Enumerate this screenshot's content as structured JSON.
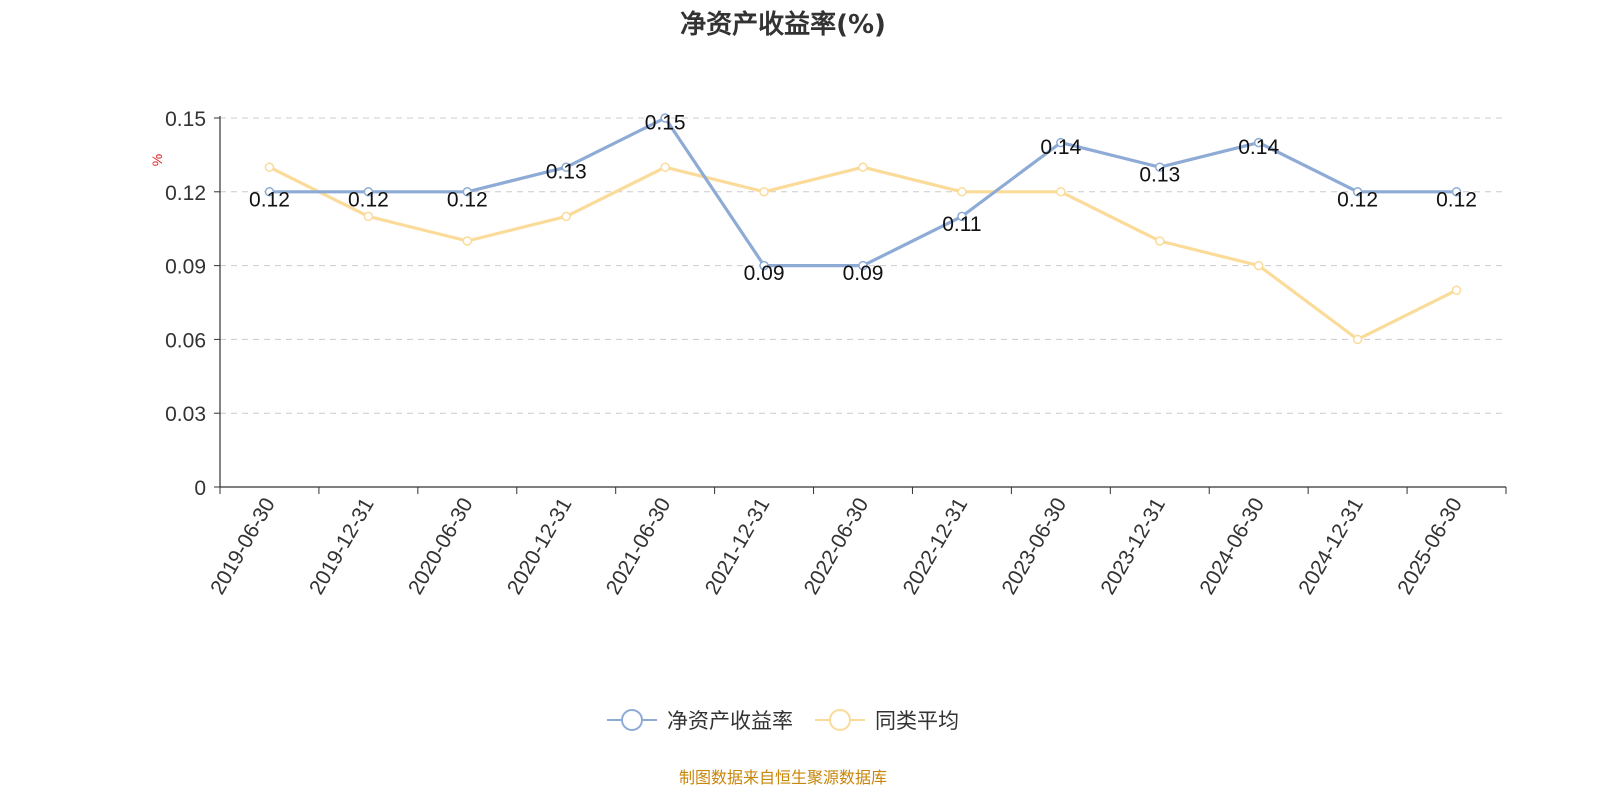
{
  "chart_data": {
    "type": "line",
    "title": "净资产收益率(%)",
    "ylabel": "%",
    "xlabel": "",
    "categories": [
      "2019-06-30",
      "2019-12-31",
      "2020-06-30",
      "2020-12-31",
      "2021-06-30",
      "2021-12-31",
      "2022-06-30",
      "2022-12-31",
      "2023-06-30",
      "2023-12-31",
      "2024-06-30",
      "2024-12-31",
      "2025-06-30"
    ],
    "yticks": [
      "0",
      "0.03",
      "0.06",
      "0.09",
      "0.12",
      "0.15"
    ],
    "ylim": [
      0,
      0.15
    ],
    "grid": true,
    "legend_position": "bottom",
    "series": [
      {
        "name": "净资产收益率",
        "color": "#8eabd6",
        "values": [
          0.12,
          0.12,
          0.12,
          0.13,
          0.15,
          0.09,
          0.09,
          0.11,
          0.14,
          0.13,
          0.14,
          0.12,
          0.12
        ],
        "labels": [
          "0.12",
          "0.12",
          "0.12",
          "0.13",
          "0.15",
          "0.09",
          "0.09",
          "0.11",
          "0.14",
          "0.13",
          "0.14",
          "0.12",
          "0.12"
        ]
      },
      {
        "name": "同类平均",
        "color": "#fbdb9a",
        "values": [
          0.13,
          0.11,
          0.1,
          0.11,
          0.13,
          0.12,
          0.13,
          0.12,
          0.12,
          0.1,
          0.09,
          0.06,
          0.08
        ]
      }
    ]
  },
  "source_note": "制图数据来自恒生聚源数据库"
}
